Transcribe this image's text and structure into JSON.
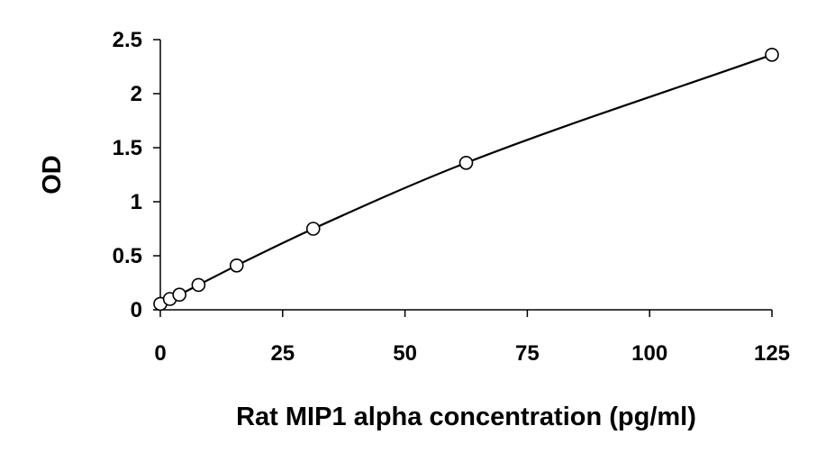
{
  "chart_data": {
    "type": "scatter",
    "title": "",
    "xlabel": "Rat MIP1 alpha concentration (pg/ml)",
    "ylabel": "OD",
    "xlim": [
      0,
      125
    ],
    "ylim": [
      0,
      2.5
    ],
    "x_ticks": [
      0,
      25,
      50,
      75,
      100,
      125
    ],
    "x_tick_labels": [
      "0",
      "25",
      "50",
      "75",
      "100",
      "125"
    ],
    "y_ticks": [
      0,
      0.5,
      1,
      1.5,
      2,
      2.5
    ],
    "y_tick_labels": [
      "0",
      "0.5",
      "1",
      "1.5",
      "2",
      "2.5"
    ],
    "grid": false,
    "legend": "none",
    "marker": "open-circle",
    "trendline": "smooth-curve",
    "series": [
      {
        "x": [
          0,
          1.95,
          3.9,
          7.8,
          15.6,
          31.25,
          62.5,
          125
        ],
        "y": [
          0.055,
          0.1,
          0.14,
          0.23,
          0.41,
          0.75,
          1.36,
          2.36
        ]
      }
    ],
    "colors": {
      "line": "#000000",
      "marker_stroke": "#000000",
      "marker_fill": "#ffffff"
    }
  }
}
